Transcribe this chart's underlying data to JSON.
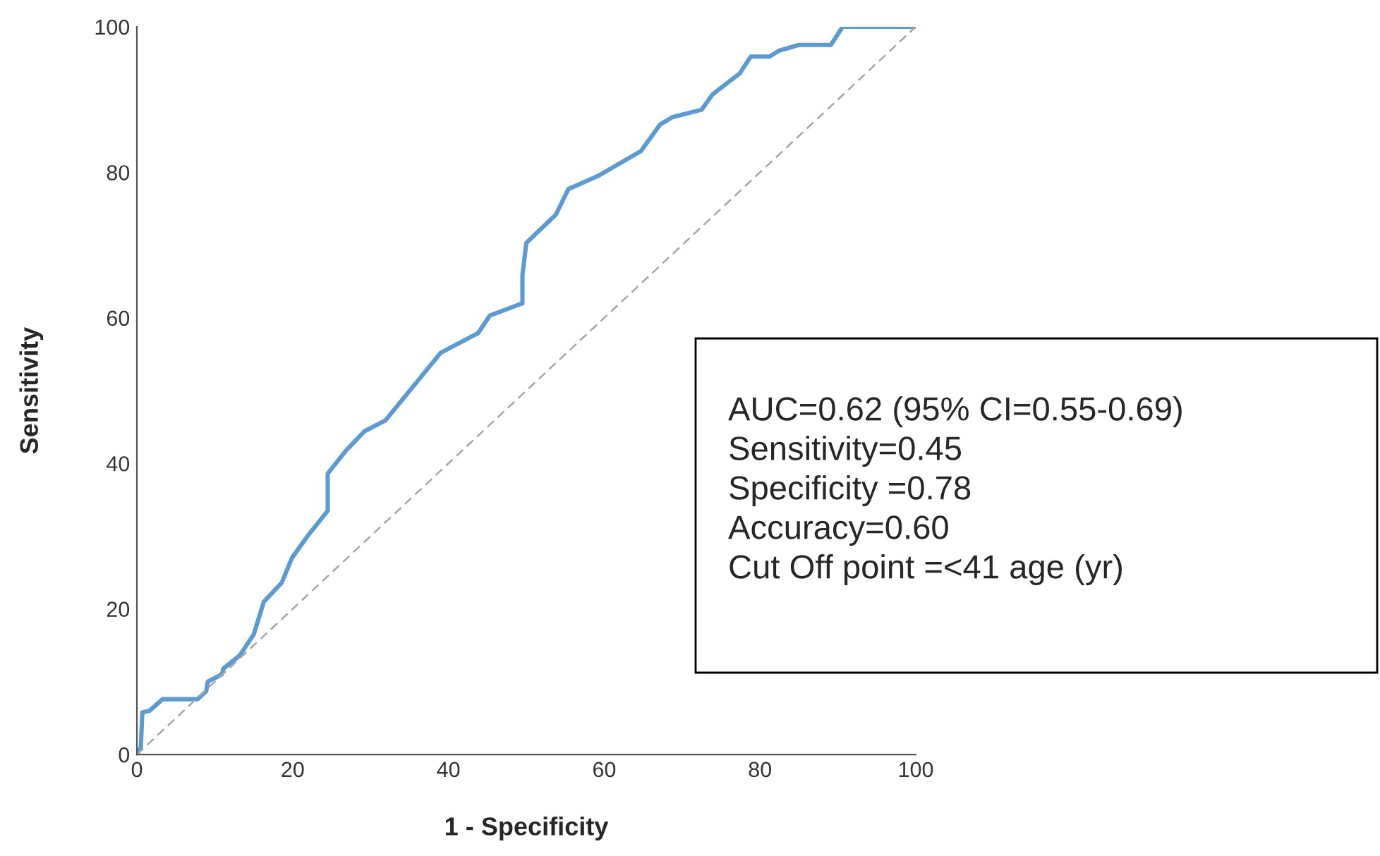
{
  "chart_data": {
    "type": "line",
    "xlabel": "1 - Specificity",
    "ylabel": "Sensitivity",
    "xlim": [
      0,
      100
    ],
    "ylim": [
      0,
      100
    ],
    "xticks": [
      0,
      20,
      40,
      60,
      80,
      100
    ],
    "yticks": [
      0,
      20,
      40,
      60,
      80,
      100
    ],
    "grid": false,
    "marker": "none",
    "series": [
      {
        "color": "#5b9bd5",
        "line_style": "solid",
        "x": [
          0,
          0.5,
          0.7,
          1.6,
          3.3,
          7.8,
          8.9,
          9.1,
          10.9,
          11.1,
          13.2,
          15,
          16.3,
          18.6,
          19.9,
          21.9,
          24.5,
          24.5,
          26.8,
          29.2,
          31.9,
          39,
          43.8,
          45.3,
          49.5,
          49.5,
          50,
          53.8,
          55.4,
          59.2,
          64.7,
          67.2,
          68.8,
          72.5,
          73.9,
          77.4,
          78.8,
          81.2,
          82.4,
          85,
          89.1,
          90.6,
          100
        ],
        "values": [
          0,
          1,
          5.8,
          6,
          7.6,
          7.6,
          8.7,
          10,
          11,
          11.8,
          13.6,
          16.5,
          21,
          23.6,
          27,
          30,
          33.5,
          38.6,
          41.7,
          44.4,
          45.9,
          55.2,
          57.9,
          60.3,
          62,
          65.9,
          70.3,
          74.2,
          77.7,
          79.5,
          82.9,
          86.6,
          87.6,
          88.6,
          90.7,
          93.6,
          95.9,
          95.9,
          96.7,
          97.5,
          97.5,
          100,
          100
        ]
      },
      {
        "color": "#a6a6a6",
        "line_style": "dashed",
        "x": [
          0,
          100
        ],
        "values": [
          0,
          100
        ]
      }
    ],
    "annotations": [
      "AUC=0.62 (95% CI=0.55-0.69)\nSensitivity=0.45\nSpecificity =0.78\nAccuracy=0.60\nCut Off point =<41 age (yr)"
    ]
  }
}
